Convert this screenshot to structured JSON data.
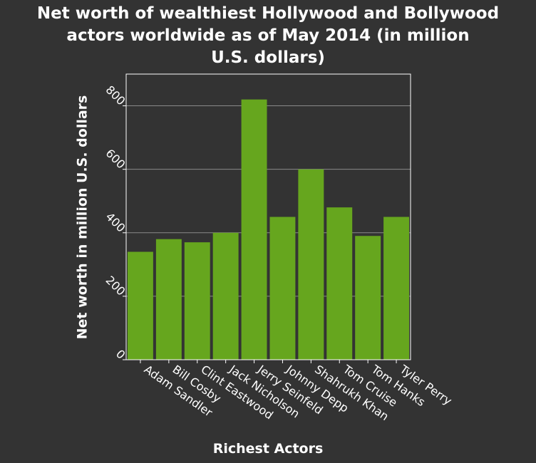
{
  "chart_data": {
    "type": "bar",
    "title_lines": [
      "Net worth of wealthiest Hollywood and Bollywood",
      "actors worldwide as of May 2014 (in million",
      "U.S. dollars)"
    ],
    "xlabel": "Richest Actors",
    "ylabel": "Net worth in million U.S. dollars",
    "categories": [
      "Adam Sandler",
      "Bill Cosby",
      "Clint Eastwood",
      "Jack Nicholson",
      "Jerry Seinfeld",
      "Johnny Depp",
      "Shahrukh Khan",
      "Tom Cruise",
      "Tom Hanks",
      "Tyler Perry"
    ],
    "values": [
      340,
      380,
      370,
      400,
      820,
      450,
      600,
      480,
      390,
      450
    ],
    "ylim": [
      0,
      900
    ],
    "yticks": [
      0,
      200,
      400,
      600,
      800
    ],
    "grid": true,
    "colors": {
      "bar": "#66a61e",
      "background": "#333333",
      "grid": "#8a8a8a",
      "axis": "#ffffff"
    }
  }
}
